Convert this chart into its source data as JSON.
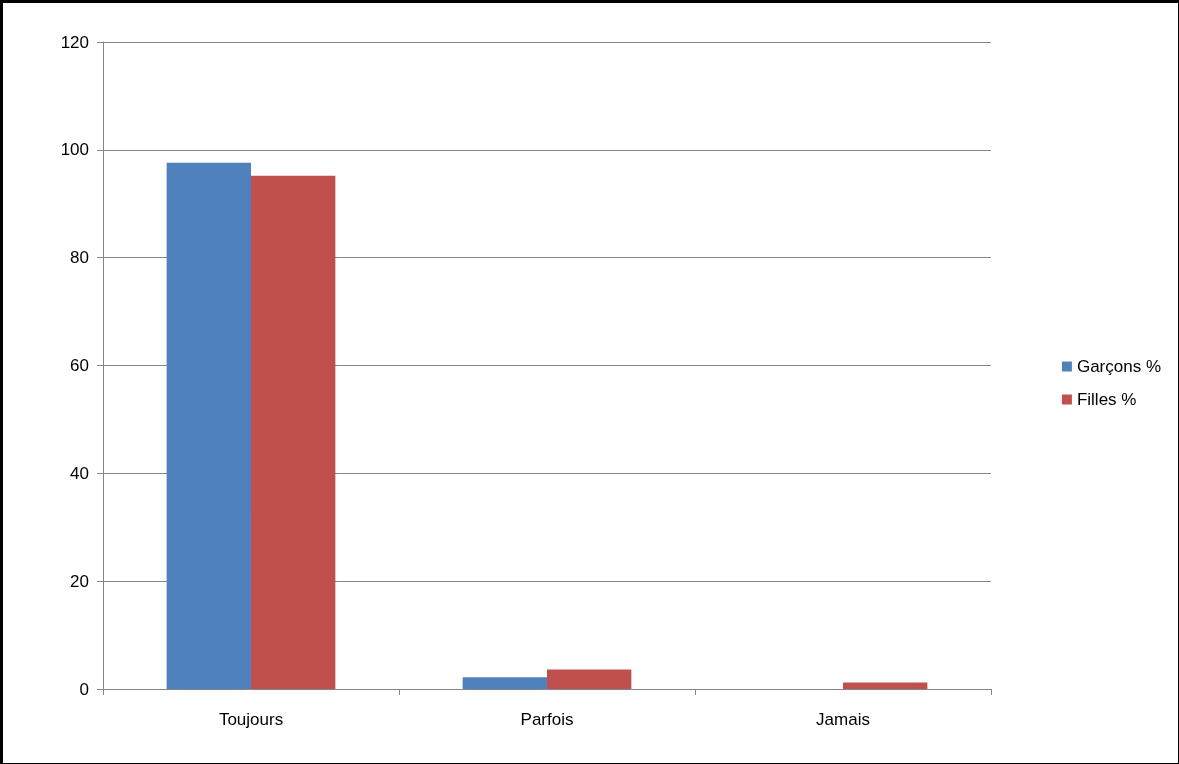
{
  "chart_data": {
    "type": "bar",
    "categories": [
      "Toujours",
      "Parfois",
      "Jamais"
    ],
    "series": [
      {
        "name": "Garçons %",
        "color": "#4f81bd",
        "values": [
          97.6,
          2.2,
          0
        ]
      },
      {
        "name": "Filles %",
        "color": "#c0504d",
        "values": [
          95.2,
          3.6,
          1.2
        ]
      }
    ],
    "ylim": [
      0,
      120
    ],
    "yticks": [
      0,
      20,
      40,
      60,
      80,
      100,
      120
    ],
    "grid": "y",
    "legend": "right"
  }
}
